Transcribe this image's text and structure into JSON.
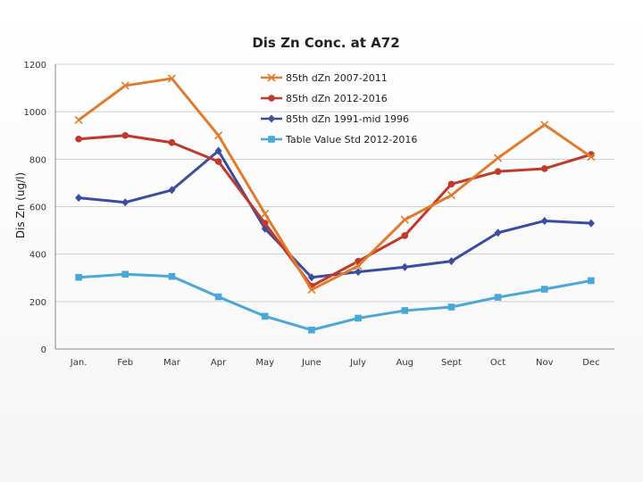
{
  "chart_data": {
    "type": "line",
    "title": "Dis Zn Conc. at A72",
    "xlabel": "",
    "ylabel": "Dis Zn (ug/l)",
    "ylim": [
      0,
      1200
    ],
    "yticks": [
      "0",
      "200",
      "400",
      "600",
      "800",
      "1000",
      "1200"
    ],
    "categories": [
      "Jan.",
      "Feb",
      "Mar",
      "Apr",
      "May",
      "June",
      "July",
      "Aug",
      "Sept",
      "Oct",
      "Nov",
      "Dec"
    ],
    "grid": "horizontal",
    "legend_position": "top-right",
    "series": [
      {
        "name": "85th dZn 2007-2011",
        "color": "#e07c2c",
        "marker": "x",
        "values": [
          965,
          1110,
          1140,
          900,
          570,
          250,
          350,
          545,
          648,
          805,
          945,
          810
        ]
      },
      {
        "name": "85th dZn 2012-2016",
        "color": "#c0392b",
        "marker": "circle",
        "values": [
          885,
          900,
          870,
          790,
          530,
          265,
          370,
          478,
          695,
          748,
          760,
          820
        ]
      },
      {
        "name": "85th dZn 1991-mid 1996",
        "color": "#3b4da0",
        "marker": "diamond",
        "values": [
          637,
          618,
          670,
          835,
          507,
          302,
          325,
          345,
          370,
          490,
          540,
          530
        ]
      },
      {
        "name": "Table Value Std 2012-2016",
        "color": "#4aa8d8",
        "marker": "square",
        "values": [
          302,
          315,
          306,
          220,
          138,
          80,
          130,
          162,
          177,
          218,
          252,
          288
        ]
      }
    ]
  }
}
